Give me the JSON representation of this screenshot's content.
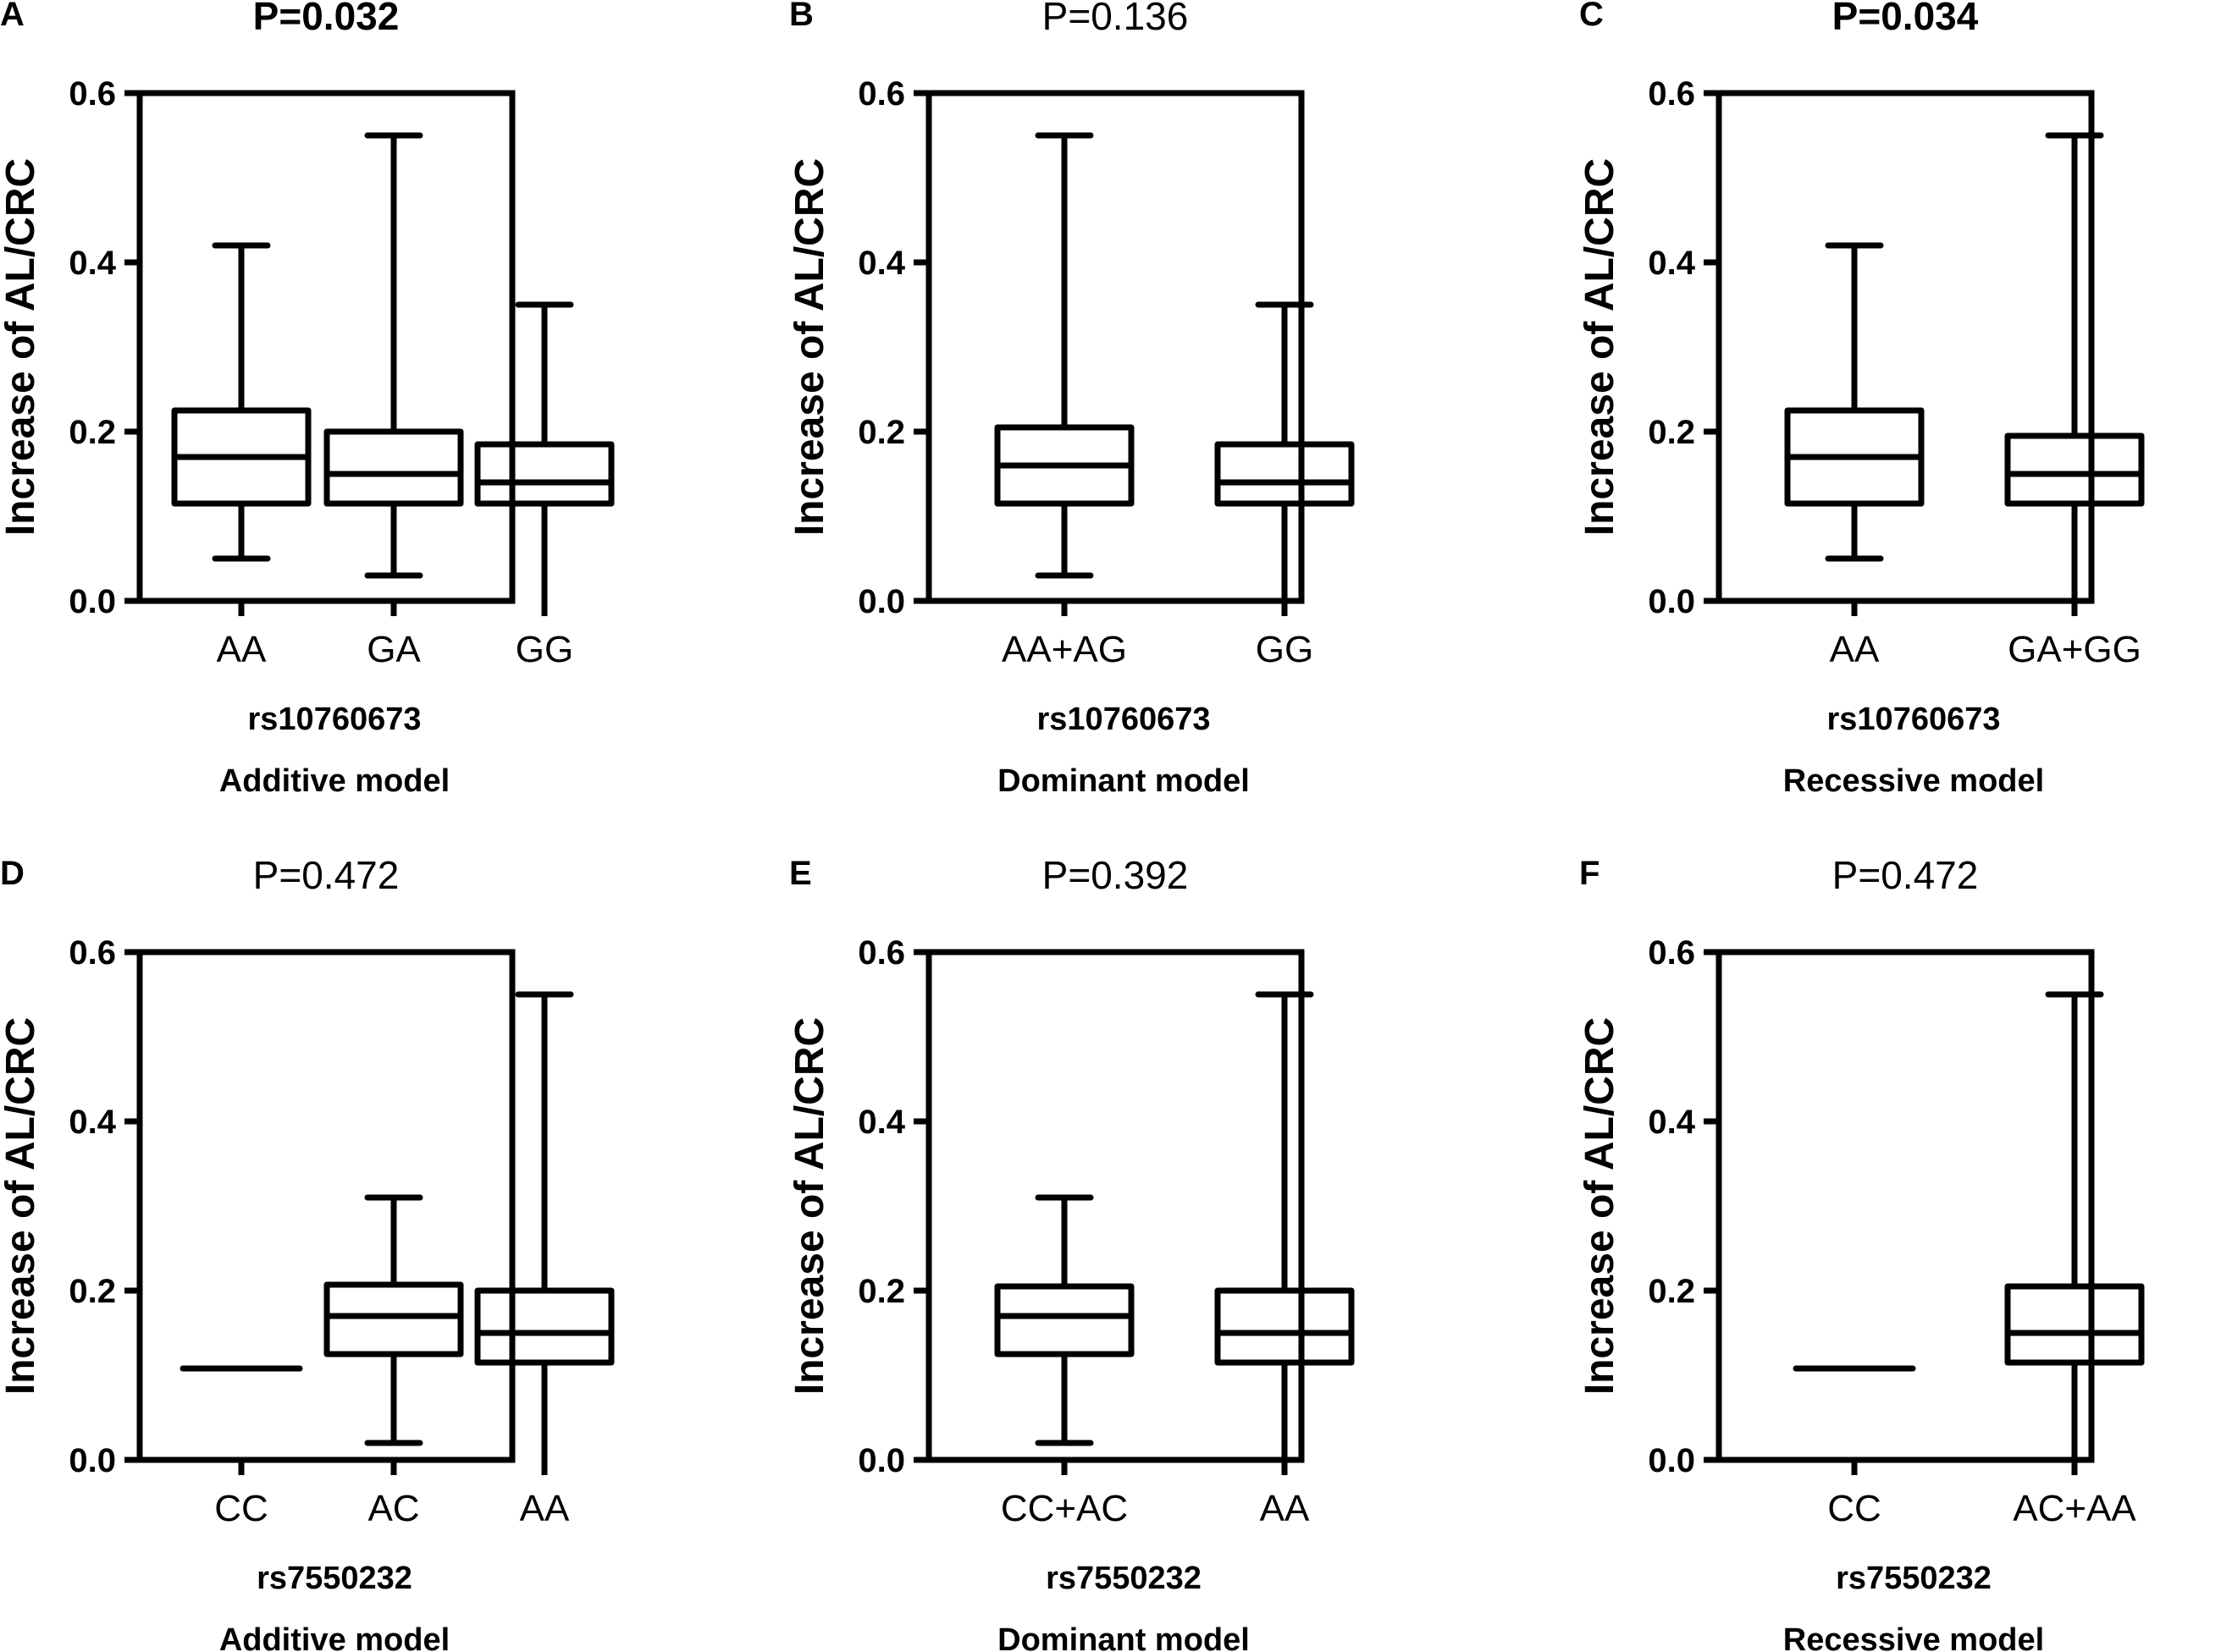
{
  "chart_data": [
    {
      "type": "box",
      "panel": "A",
      "title": "P=0.032",
      "title_bold": true,
      "ylabel": "Increase of AL/CRC",
      "ylim": [
        0,
        0.6
      ],
      "yticks": [
        "0.0",
        "0.2",
        "0.4",
        "0.6"
      ],
      "snp": "rs10760673",
      "model": "Additive model",
      "categories": [
        "AA",
        "GA",
        "GG"
      ],
      "boxes": [
        {
          "label": "AA",
          "min": 0.05,
          "q1": 0.115,
          "median": 0.17,
          "q3": 0.225,
          "max": 0.42
        },
        {
          "label": "GA",
          "min": 0.03,
          "q1": 0.115,
          "median": 0.15,
          "q3": 0.2,
          "max": 0.55
        },
        {
          "label": "GG",
          "min": 0.0,
          "q1": 0.115,
          "median": 0.14,
          "q3": 0.185,
          "max": 0.35
        }
      ]
    },
    {
      "type": "box",
      "panel": "B",
      "title": "P=0.136",
      "title_bold": false,
      "ylabel": "Increase of AL/CRC",
      "ylim": [
        0,
        0.6
      ],
      "yticks": [
        "0.0",
        "0.2",
        "0.4",
        "0.6"
      ],
      "snp": "rs10760673",
      "model": "Dominant model",
      "categories": [
        "AA+AG",
        "GG"
      ],
      "boxes": [
        {
          "label": "AA+AG",
          "min": 0.03,
          "q1": 0.115,
          "median": 0.16,
          "q3": 0.205,
          "max": 0.55
        },
        {
          "label": "GG",
          "min": 0.0,
          "q1": 0.115,
          "median": 0.14,
          "q3": 0.185,
          "max": 0.35
        }
      ]
    },
    {
      "type": "box",
      "panel": "C",
      "title": "P=0.034",
      "title_bold": true,
      "ylabel": "Increase of AL/CRC",
      "ylim": [
        0,
        0.6
      ],
      "yticks": [
        "0.0",
        "0.2",
        "0.4",
        "0.6"
      ],
      "snp": "rs10760673",
      "model": "Recessive model",
      "categories": [
        "AA",
        "GA+GG"
      ],
      "boxes": [
        {
          "label": "AA",
          "min": 0.05,
          "q1": 0.115,
          "median": 0.17,
          "q3": 0.225,
          "max": 0.42
        },
        {
          "label": "GA+GG",
          "min": 0.0,
          "q1": 0.115,
          "median": 0.15,
          "q3": 0.195,
          "max": 0.55
        }
      ]
    },
    {
      "type": "box",
      "panel": "D",
      "title": "P=0.472",
      "title_bold": false,
      "ylabel": "Increase of AL/CRC",
      "ylim": [
        0,
        0.6
      ],
      "yticks": [
        "0.0",
        "0.2",
        "0.4",
        "0.6"
      ],
      "snp": "rs7550232",
      "model": "Additive model",
      "categories": [
        "CC",
        "AC",
        "AA"
      ],
      "boxes": [
        {
          "label": "CC",
          "min": 0.108,
          "q1": 0.108,
          "median": 0.108,
          "q3": 0.108,
          "max": 0.108
        },
        {
          "label": "AC",
          "min": 0.02,
          "q1": 0.125,
          "median": 0.17,
          "q3": 0.207,
          "max": 0.31
        },
        {
          "label": "AA",
          "min": 0.0,
          "q1": 0.115,
          "median": 0.15,
          "q3": 0.2,
          "max": 0.55
        }
      ]
    },
    {
      "type": "box",
      "panel": "E",
      "title": "P=0.392",
      "title_bold": false,
      "ylabel": "Increase of AL/CRC",
      "ylim": [
        0,
        0.6
      ],
      "yticks": [
        "0.0",
        "0.2",
        "0.4",
        "0.6"
      ],
      "snp": "rs7550232",
      "model": "Dominant model",
      "categories": [
        "CC+AC",
        "AA"
      ],
      "boxes": [
        {
          "label": "CC+AC",
          "min": 0.02,
          "q1": 0.125,
          "median": 0.17,
          "q3": 0.205,
          "max": 0.31
        },
        {
          "label": "AA",
          "min": 0.0,
          "q1": 0.115,
          "median": 0.15,
          "q3": 0.2,
          "max": 0.55
        }
      ]
    },
    {
      "type": "box",
      "panel": "F",
      "title": "P=0.472",
      "title_bold": false,
      "ylabel": "Increase of AL/CRC",
      "ylim": [
        0,
        0.6
      ],
      "yticks": [
        "0.0",
        "0.2",
        "0.4",
        "0.6"
      ],
      "snp": "rs7550232",
      "model": "Recessive model",
      "categories": [
        "CC",
        "AC+AA"
      ],
      "boxes": [
        {
          "label": "CC",
          "min": 0.108,
          "q1": 0.108,
          "median": 0.108,
          "q3": 0.108,
          "max": 0.108
        },
        {
          "label": "AC+AA",
          "min": 0.0,
          "q1": 0.115,
          "median": 0.15,
          "q3": 0.205,
          "max": 0.55
        }
      ]
    }
  ]
}
